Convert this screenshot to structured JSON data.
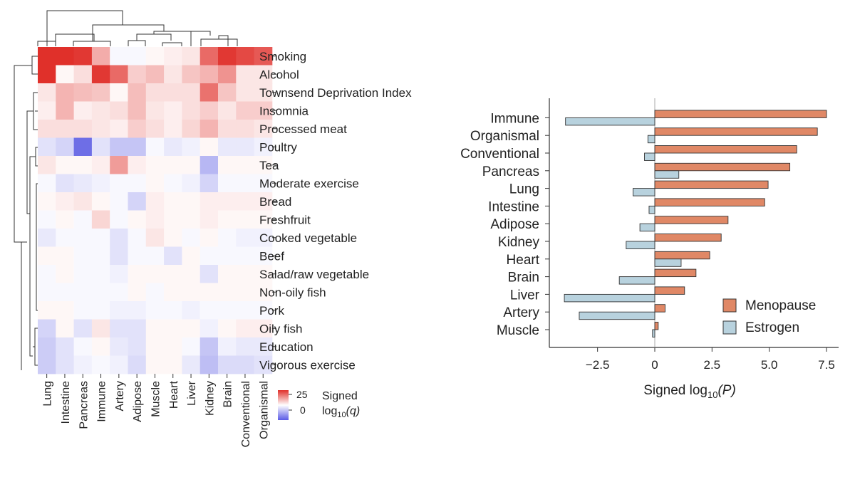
{
  "chart_data": [
    {
      "type": "heatmap",
      "columns": [
        "Lung",
        "Intestine",
        "Pancreas",
        "Immune",
        "Artery",
        "Adipose",
        "Muscle",
        "Heart",
        "Liver",
        "Kidney",
        "Brain",
        "Conventional",
        "Organismal"
      ],
      "rows": [
        "Smoking",
        "Alcohol",
        "Townsend Deprivation Index",
        "Insomnia",
        "Processed meat",
        "Poultry",
        "Tea",
        "Moderate exercise",
        "Bread",
        "Freshfruit",
        "Cooked vegetable",
        "Beef",
        "Salad/raw vegetable",
        "Non-oily fish",
        "Pork",
        "Oily fish",
        "Education",
        "Vigorous exercise"
      ],
      "values": [
        [
          25,
          25,
          24,
          10,
          -1,
          -1,
          1,
          2,
          3,
          18,
          24,
          22,
          20
        ],
        [
          25,
          1,
          4,
          24,
          18,
          6,
          8,
          3,
          7,
          9,
          13,
          3,
          3
        ],
        [
          3,
          9,
          8,
          7,
          1,
          8,
          4,
          4,
          4,
          17,
          7,
          3,
          3
        ],
        [
          2,
          9,
          2,
          3,
          4,
          8,
          3,
          2,
          4,
          6,
          3,
          6,
          6
        ],
        [
          4,
          4,
          4,
          3,
          2,
          6,
          4,
          2,
          5,
          9,
          4,
          4,
          3
        ],
        [
          -4,
          -6,
          -20,
          -4,
          -8,
          -8,
          -1,
          -3,
          -2,
          1,
          -3,
          -3,
          -2
        ],
        [
          3,
          1,
          1,
          2,
          12,
          2,
          1,
          1,
          1,
          -10,
          1,
          1,
          1
        ],
        [
          -1,
          -4,
          -3,
          -2,
          -1,
          -1,
          1,
          -1,
          -2,
          -6,
          -1,
          -1,
          -1
        ],
        [
          1,
          2,
          3,
          1,
          -1,
          -6,
          2,
          1,
          1,
          2,
          2,
          2,
          2
        ],
        [
          -1,
          1,
          -1,
          5,
          -1,
          1,
          2,
          1,
          1,
          2,
          1,
          1,
          1
        ],
        [
          -3,
          -1,
          -1,
          -1,
          -4,
          -1,
          3,
          1,
          -1,
          1,
          -1,
          -2,
          -2
        ],
        [
          1,
          1,
          -1,
          -1,
          -4,
          -1,
          -1,
          -4,
          1,
          -1,
          -1,
          -1,
          -1
        ],
        [
          -1,
          1,
          -1,
          -1,
          -2,
          1,
          1,
          1,
          1,
          -4,
          1,
          1,
          1
        ],
        [
          -1,
          -1,
          -1,
          -1,
          -1,
          1,
          -1,
          1,
          1,
          1,
          1,
          1,
          1
        ],
        [
          1,
          1,
          -1,
          -1,
          -2,
          -2,
          -1,
          -1,
          -2,
          -1,
          -1,
          -1,
          -1
        ],
        [
          -6,
          1,
          -4,
          3,
          -4,
          -4,
          1,
          1,
          1,
          -2,
          1,
          2,
          2
        ],
        [
          -7,
          -4,
          -1,
          1,
          -3,
          -4,
          1,
          1,
          -1,
          -8,
          -2,
          -3,
          -3
        ],
        [
          -7,
          -4,
          -2,
          -1,
          -2,
          -5,
          1,
          1,
          -3,
          -9,
          -5,
          -5,
          -4
        ]
      ],
      "color_scale": {
        "min_label": "0",
        "max_label": "25",
        "title_line1": "Signed",
        "title_line2_prefix": "log",
        "title_line2_sub": "10",
        "title_line2_suffix": "(q)",
        "max_value": 25,
        "min_value": -25,
        "high_color": "#e0302a",
        "mid_color": "#ffffff",
        "low_color": "#4a4ae0"
      }
    },
    {
      "type": "bar",
      "orientation": "horizontal",
      "categories": [
        "Immune",
        "Organismal",
        "Conventional",
        "Pancreas",
        "Lung",
        "Intestine",
        "Adipose",
        "Kidney",
        "Heart",
        "Brain",
        "Liver",
        "Artery",
        "Muscle"
      ],
      "series": [
        {
          "name": "Menopause",
          "color": "#e08866",
          "values": [
            7.5,
            7.1,
            6.2,
            5.9,
            4.95,
            4.8,
            3.2,
            2.9,
            2.4,
            1.8,
            1.3,
            0.45,
            0.15
          ]
        },
        {
          "name": "Estrogen",
          "color": "#b8d2de",
          "values": [
            -3.9,
            -0.3,
            -0.45,
            1.05,
            -0.95,
            -0.25,
            -0.65,
            -1.25,
            1.15,
            -1.55,
            -3.95,
            -3.3,
            -0.1
          ]
        }
      ],
      "xlabel_prefix": "Signed log",
      "xlabel_sub": "10",
      "xlabel_suffix": "(P)",
      "xlim": [
        -5,
        8.2
      ],
      "xticks": [
        -2.5,
        0,
        2.5,
        5.0,
        7.5
      ],
      "xtick_labels": [
        "−2.5",
        "0",
        "2.5",
        "5.0",
        "7.5"
      ],
      "legend_position": "bottom-right"
    }
  ]
}
